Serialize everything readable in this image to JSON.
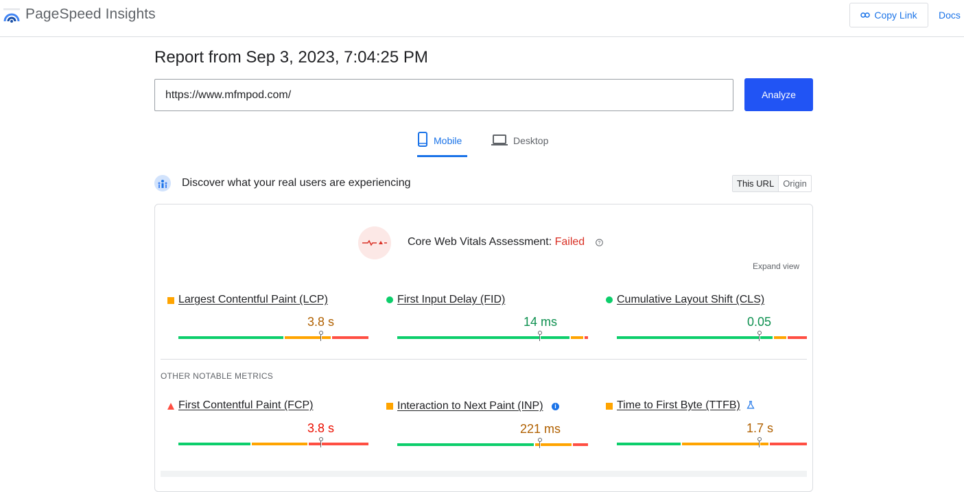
{
  "header": {
    "app_title": "PageSpeed Insights",
    "copy_link": "Copy Link",
    "docs": "Docs"
  },
  "report": {
    "title": "Report from Sep 3, 2023, 7:04:25 PM",
    "url_value": "https://www.mfmpod.com/",
    "analyze": "Analyze"
  },
  "tabs": [
    {
      "label": "Mobile",
      "active": true
    },
    {
      "label": "Desktop",
      "active": false
    }
  ],
  "field": {
    "discover": "Discover what your real users are experiencing",
    "scope_options": [
      "This URL",
      "Origin"
    ],
    "assessment_label": "Core Web Vitals Assessment:",
    "assessment_result": "Failed",
    "expand": "Expand view",
    "other_label": "OTHER NOTABLE METRICS"
  },
  "core_metrics": [
    {
      "name": "Largest Contentful Paint (LCP)",
      "value": "3.8 s",
      "status": "needs-improvement"
    },
    {
      "name": "First Input Delay (FID)",
      "value": "14 ms",
      "status": "good"
    },
    {
      "name": "Cumulative Layout Shift (CLS)",
      "value": "0.05",
      "status": "good"
    }
  ],
  "other_metrics": [
    {
      "name": "First Contentful Paint (FCP)",
      "value": "3.8 s",
      "status": "poor"
    },
    {
      "name": "Interaction to Next Paint (INP)",
      "value": "221 ms",
      "status": "needs-improvement"
    },
    {
      "name": "Time to First Byte (TTFB)",
      "value": "1.7 s",
      "status": "needs-improvement"
    }
  ],
  "colors": {
    "good": "#0cce6b",
    "needs_improvement": "#ffa400",
    "poor": "#ff4e42",
    "accent": "#1a73e8",
    "analyze_bg": "#2154f4"
  }
}
